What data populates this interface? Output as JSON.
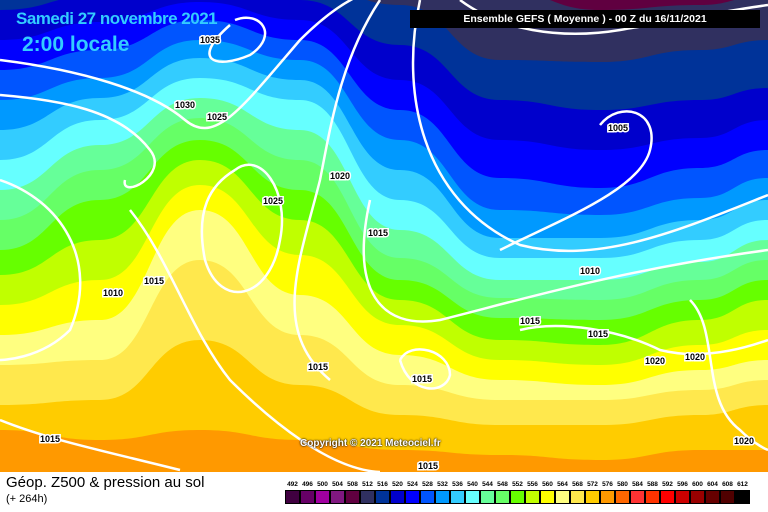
{
  "header": {
    "date": "Samedi 27 novembre 2021",
    "time": "2:00 locale",
    "run": "Ensemble GEFS  ( Moyenne )  -  00 Z du 16/11/2021"
  },
  "copyright": "Copyright © 2021 Meteociel.fr",
  "footer": {
    "title": "Géop. Z500 & pression au sol",
    "subtitle": "(+ 264h)"
  },
  "legend": {
    "labels": [
      "492",
      "496",
      "500",
      "504",
      "508",
      "512",
      "516",
      "520",
      "524",
      "528",
      "532",
      "536",
      "540",
      "544",
      "548",
      "552",
      "556",
      "560",
      "564",
      "568",
      "572",
      "576",
      "580",
      "584",
      "588",
      "592",
      "596",
      "600",
      "604",
      "608",
      "612"
    ],
    "colors": [
      "#400040",
      "#660066",
      "#a000a0",
      "#801880",
      "#600040",
      "#303060",
      "#003399",
      "#0000cc",
      "#0000ff",
      "#0055ff",
      "#0099ff",
      "#33ccff",
      "#66ffff",
      "#66ff99",
      "#66ff66",
      "#66ff00",
      "#c0ff00",
      "#ffff00",
      "#ffff80",
      "#ffe84d",
      "#ffcc00",
      "#ff9900",
      "#ff6600",
      "#ff3333",
      "#ff3300",
      "#ff0000",
      "#cc0000",
      "#990000",
      "#660000",
      "#500000",
      "#000000"
    ]
  },
  "isobars": [
    "1035",
    "1030",
    "1025",
    "1025",
    "1020",
    "1015",
    "1015",
    "1010",
    "1015",
    "1005",
    "1010",
    "1015",
    "1015",
    "1015",
    "1020",
    "1020",
    "1015",
    "1015",
    "1020"
  ]
}
